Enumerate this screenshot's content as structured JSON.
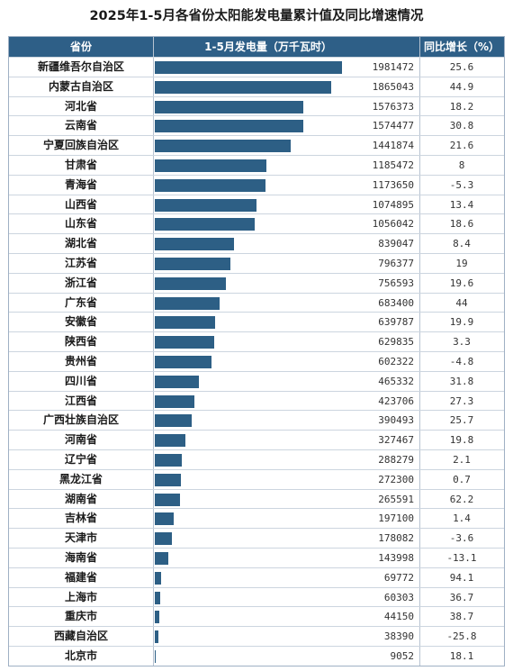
{
  "title": "2025年1-5月各省份太阳能发电量累计值及同比增速情况",
  "headers": {
    "province": "省份",
    "generation": "1-5月发电量（万千瓦时）",
    "growth": "同比增长（%）"
  },
  "colors": {
    "header_bg": "#2e5f87",
    "bar": "#2d5f85"
  },
  "chart_data": {
    "type": "bar",
    "orientation": "horizontal",
    "title": "2025年1-5月各省份太阳能发电量累计值及同比增速情况",
    "categories": [
      "新疆维吾尔自治区",
      "内蒙古自治区",
      "河北省",
      "云南省",
      "宁夏回族自治区",
      "甘肃省",
      "青海省",
      "山西省",
      "山东省",
      "湖北省",
      "江苏省",
      "浙江省",
      "广东省",
      "安徽省",
      "陕西省",
      "贵州省",
      "四川省",
      "江西省",
      "广西壮族自治区",
      "河南省",
      "辽宁省",
      "黑龙江省",
      "湖南省",
      "吉林省",
      "天津市",
      "海南省",
      "福建省",
      "上海市",
      "重庆市",
      "西藏自治区",
      "北京市"
    ],
    "series": [
      {
        "name": "1-5月发电量（万千瓦时）",
        "values": [
          1981472,
          1865043,
          1576373,
          1574477,
          1441874,
          1185472,
          1173650,
          1074895,
          1056042,
          839047,
          796377,
          756593,
          683400,
          639787,
          629835,
          602322,
          465332,
          423706,
          390493,
          327467,
          288279,
          272300,
          265591,
          197100,
          178082,
          143998,
          69772,
          60303,
          44150,
          38390,
          9052
        ]
      },
      {
        "name": "同比增长（%）",
        "values": [
          "25.6",
          "44.9",
          "18.2",
          "30.8",
          "21.6",
          "8",
          "-5.3",
          "13.4",
          "18.6",
          "8.4",
          "19",
          "19.6",
          "44",
          "19.9",
          "3.3",
          "-4.8",
          "31.8",
          "27.3",
          "25.7",
          "19.8",
          "2.1",
          "0.7",
          "62.2",
          "1.4",
          "-3.6",
          "-13.1",
          "94.1",
          "36.7",
          "38.7",
          "-25.8",
          "18.1"
        ]
      }
    ],
    "xlim": [
      0,
      1981472
    ]
  }
}
